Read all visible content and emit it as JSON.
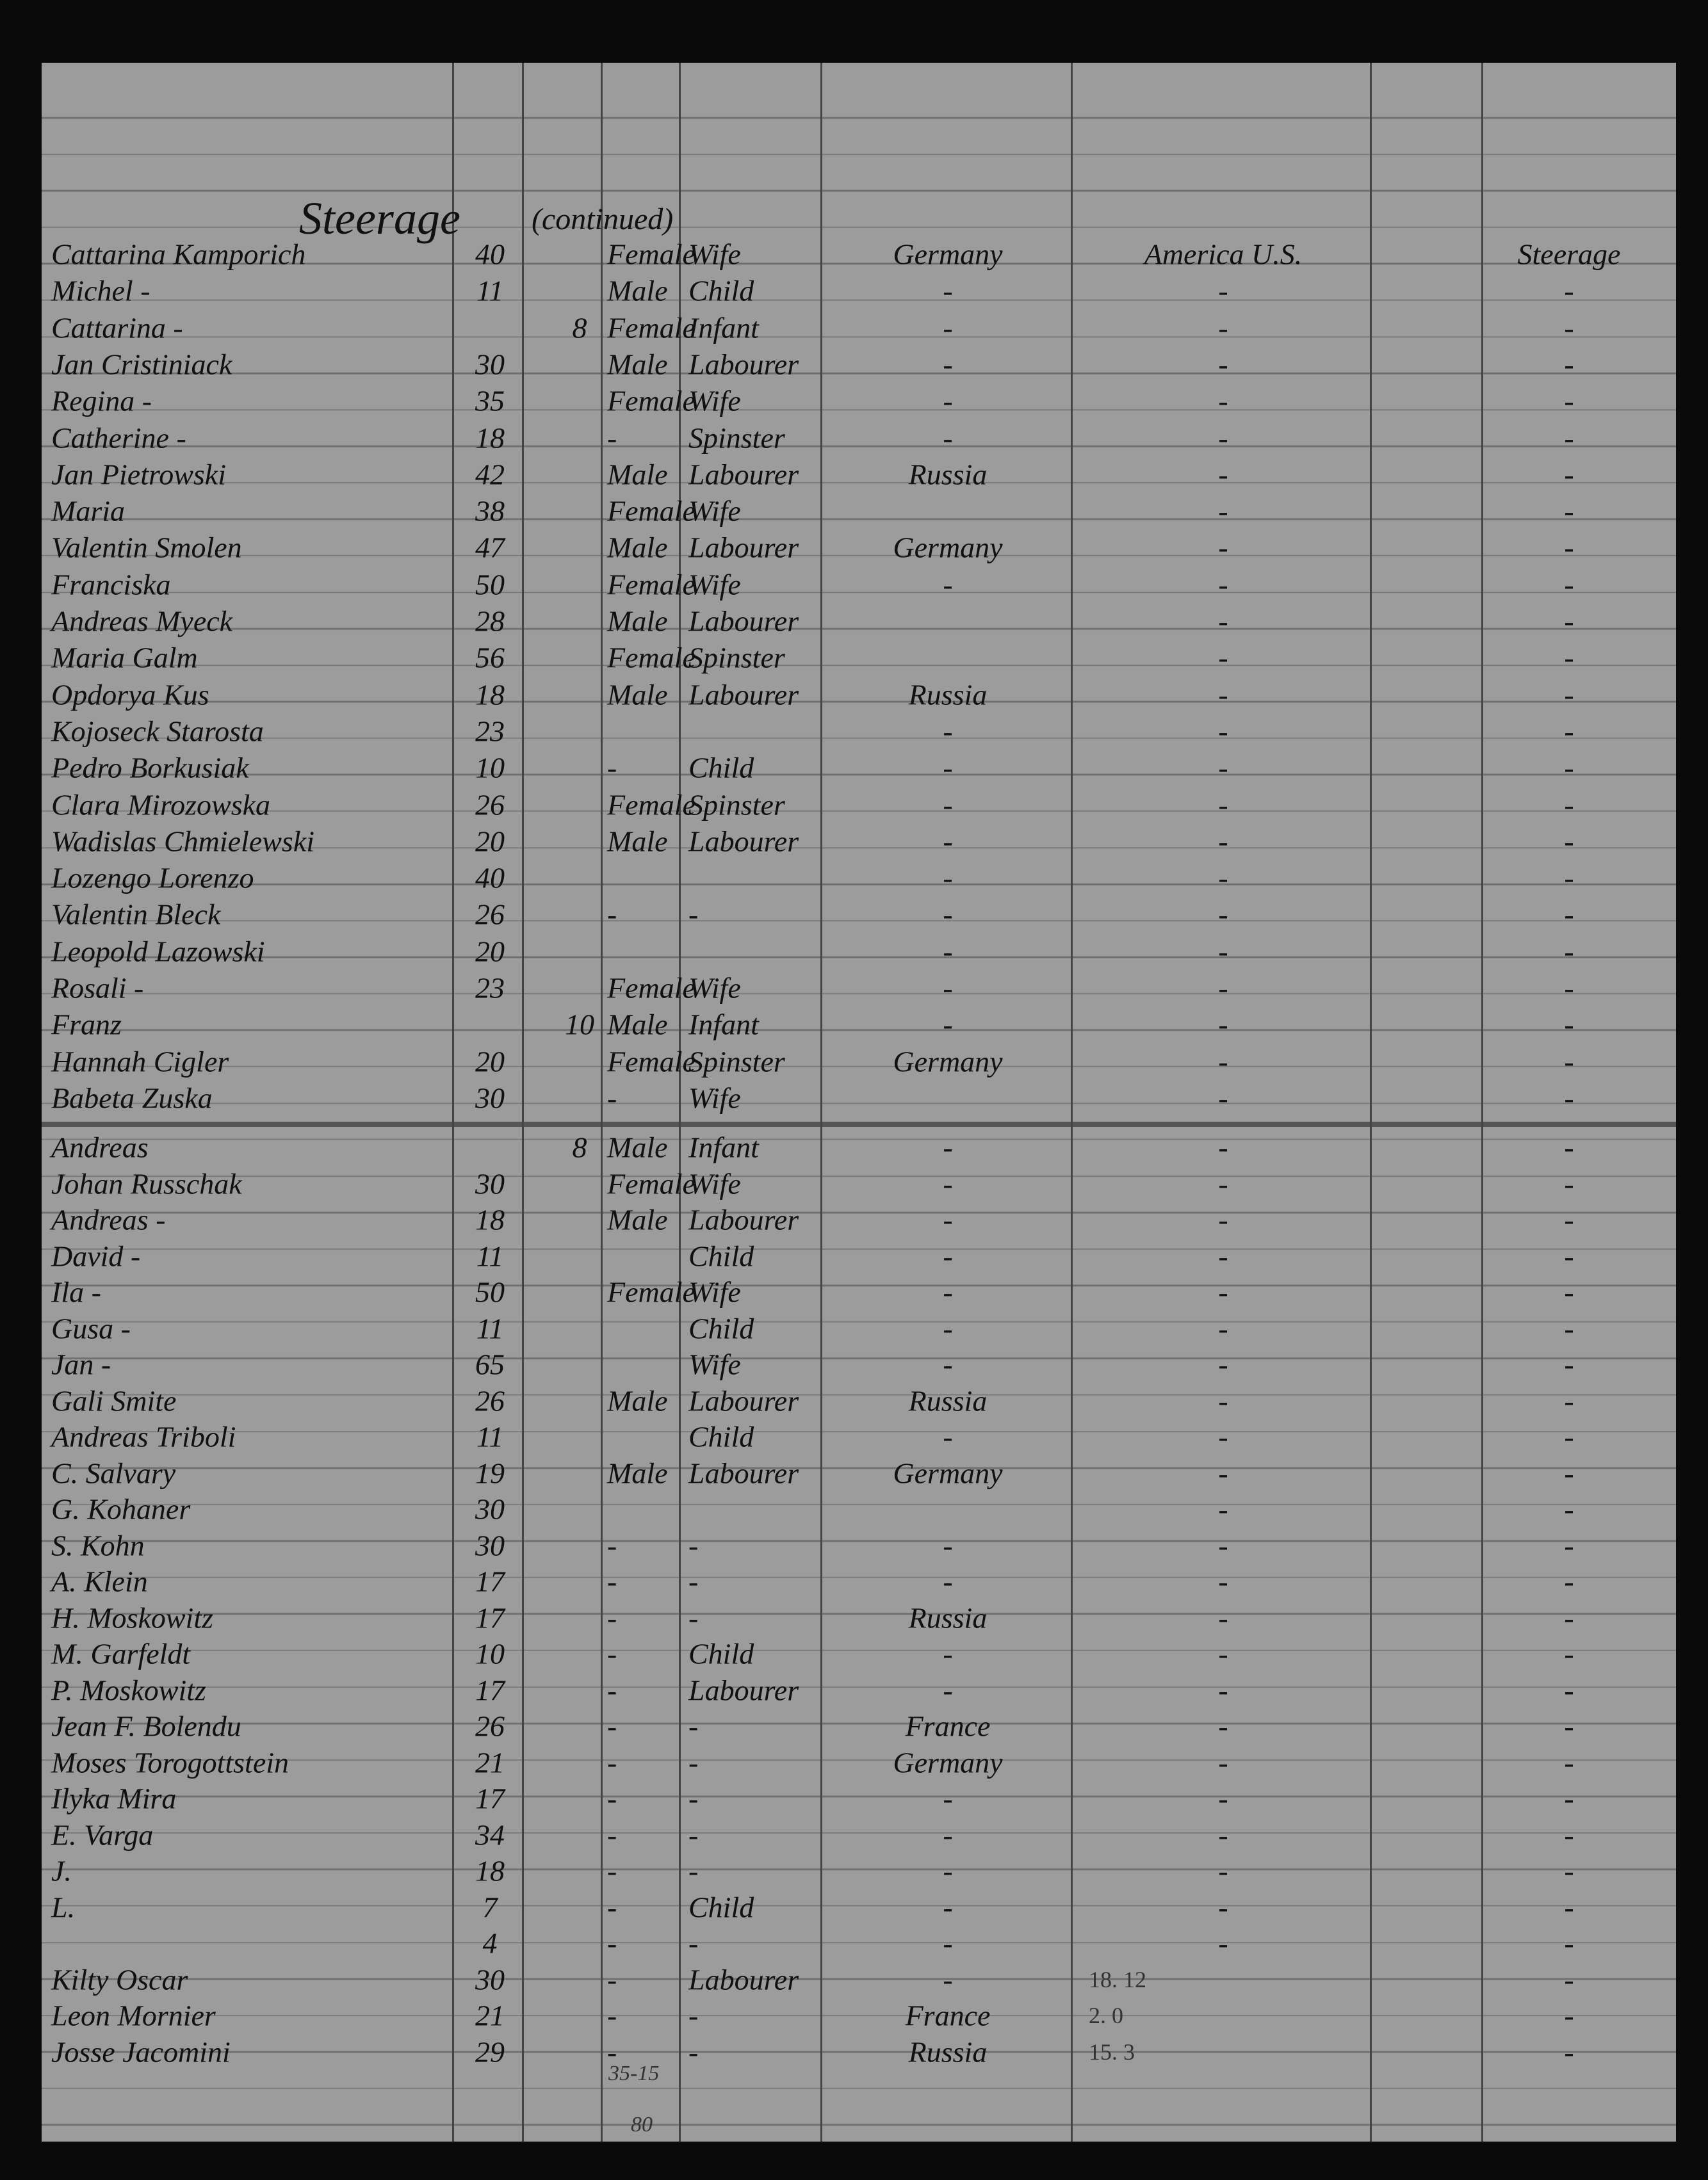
{
  "header": {
    "title": "Steerage",
    "subtitle": "(continued)"
  },
  "table": {
    "rows": [
      {
        "name": "Cattarina Kamporich",
        "age": "40",
        "sex": "Female",
        "occupation": "Wife",
        "country": "Germany",
        "destination": "America U.S.",
        "class": "Steerage"
      },
      {
        "name": "Michel  -",
        "age": "11",
        "sex": "Male",
        "occupation": "Child",
        "country": "-",
        "destination": "-",
        "class": "-"
      },
      {
        "name": "Cattarina  -",
        "infant": "8",
        "sex": "Female",
        "occupation": "Infant",
        "country": "-",
        "destination": "-",
        "class": "-"
      },
      {
        "name": "Jan Cristiniack",
        "age": "30",
        "sex": "Male",
        "occupation": "Labourer",
        "country": "-",
        "destination": "-",
        "class": "-"
      },
      {
        "name": "Regina  -",
        "age": "35",
        "sex": "Female",
        "occupation": "Wife",
        "country": "-",
        "destination": "-",
        "class": "-"
      },
      {
        "name": "Catherine  -",
        "age": "18",
        "sex": "-",
        "occupation": "Spinster",
        "country": "-",
        "destination": "-",
        "class": "-"
      },
      {
        "name": "Jan Pietrowski",
        "age": "42",
        "sex": "Male",
        "occupation": "Labourer",
        "country": "Russia",
        "destination": "-",
        "class": "-"
      },
      {
        "name": "Maria",
        "age": "38",
        "sex": "Female",
        "occupation": "Wife",
        "destination": "-",
        "class": "-"
      },
      {
        "name": "Valentin Smolen",
        "age": "47",
        "sex": "Male",
        "occupation": "Labourer",
        "country": "Germany",
        "destination": "-",
        "class": "-"
      },
      {
        "name": "Franciska",
        "age": "50",
        "sex": "Female",
        "occupation": "Wife",
        "country": "-",
        "destination": "-",
        "class": "-"
      },
      {
        "name": "Andreas Myeck",
        "age": "28",
        "sex": "Male",
        "occupation": "Labourer",
        "destination": "-",
        "class": "-"
      },
      {
        "name": "Maria Galm",
        "age": "56",
        "sex": "Female",
        "occupation": "Spinster",
        "destination": "-",
        "class": "-"
      },
      {
        "name": "Opdorya Kus",
        "age": "18",
        "sex": "Male",
        "occupation": "Labourer",
        "country": "Russia",
        "destination": "-",
        "class": "-"
      },
      {
        "name": "Kojoseck Starosta",
        "age": "23",
        "country": "-",
        "destination": "-",
        "class": "-"
      },
      {
        "name": "Pedro Borkusiak",
        "age": "10",
        "sex": "-",
        "occupation": "Child",
        "country": "-",
        "destination": "-",
        "class": "-"
      },
      {
        "name": "Clara Mirozowska",
        "age": "26",
        "sex": "Female",
        "occupation": "Spinster",
        "country": "-",
        "destination": "-",
        "class": "-"
      },
      {
        "name": "Wadislas Chmielewski",
        "age": "20",
        "sex": "Male",
        "occupation": "Labourer",
        "country": "-",
        "destination": "-",
        "class": "-"
      },
      {
        "name": "Lozengo Lorenzo",
        "age": "40",
        "country": "-",
        "destination": "-",
        "class": "-"
      },
      {
        "name": "Valentin Bleck",
        "age": "26",
        "sex": "-",
        "occupation": "-",
        "country": "-",
        "destination": "-",
        "class": "-"
      },
      {
        "name": "Leopold Lazowski",
        "age": "20",
        "country": "-",
        "destination": "-",
        "class": "-"
      },
      {
        "name": "Rosali  -",
        "age": "23",
        "sex": "Female",
        "occupation": "Wife",
        "country": "-",
        "destination": "-",
        "class": "-"
      },
      {
        "name": "Franz",
        "infant": "10",
        "sex": "Male",
        "occupation": "Infant",
        "country": "-",
        "destination": "-",
        "class": "-"
      },
      {
        "name": "Hannah Cigler",
        "age": "20",
        "sex": "Female",
        "occupation": "Spinster",
        "country": "Germany",
        "destination": "-",
        "class": "-"
      },
      {
        "name": "Babeta Zuska",
        "age": "30",
        "sex": "-",
        "occupation": "Wife",
        "destination": "-",
        "class": "-"
      },
      {
        "name": "Andreas",
        "infant": "8",
        "sex": "Male",
        "occupation": "Infant",
        "country": "-",
        "destination": "-",
        "class": "-"
      },
      {
        "name": "Johan Russchak",
        "age": "30",
        "sex": "Female",
        "occupation": "Wife",
        "country": "-",
        "destination": "-",
        "class": "-"
      },
      {
        "name": "Andreas  -",
        "age": "18",
        "sex": "Male",
        "occupation": "Labourer",
        "country": "-",
        "destination": "-",
        "class": "-"
      },
      {
        "name": "David  -",
        "age": "11",
        "occupation": "Child",
        "country": "-",
        "destination": "-",
        "class": "-"
      },
      {
        "name": "Ila  -",
        "age": "50",
        "sex": "Female",
        "occupation": "Wife",
        "country": "-",
        "destination": "-",
        "class": "-"
      },
      {
        "name": "Gusa  -",
        "age": "11",
        "occupation": "Child",
        "country": "-",
        "destination": "-",
        "class": "-"
      },
      {
        "name": "Jan  -",
        "age": "65",
        "occupation": "Wife",
        "country": "-",
        "destination": "-",
        "class": "-"
      },
      {
        "name": "Gali Smite",
        "age": "26",
        "sex": "Male",
        "occupation": "Labourer",
        "country": "Russia",
        "destination": "-",
        "class": "-"
      },
      {
        "name": "Andreas Triboli",
        "age": "11",
        "occupation": "Child",
        "country": "-",
        "destination": "-",
        "class": "-"
      },
      {
        "name": "C. Salvary",
        "age": "19",
        "sex": "Male",
        "occupation": "Labourer",
        "country": "Germany",
        "destination": "-",
        "class": "-"
      },
      {
        "name": "G. Kohaner",
        "age": "30",
        "destination": "-",
        "class": "-"
      },
      {
        "name": "S. Kohn",
        "age": "30",
        "sex": "-",
        "occupation": "-",
        "country": "-",
        "destination": "-",
        "class": "-"
      },
      {
        "name": "A. Klein",
        "age": "17",
        "sex": "-",
        "occupation": "-",
        "country": "-",
        "destination": "-",
        "class": "-"
      },
      {
        "name": "H. Moskowitz",
        "age": "17",
        "sex": "-",
        "occupation": "-",
        "country": "Russia",
        "destination": "-",
        "class": "-"
      },
      {
        "name": "M. Garfeldt",
        "age": "10",
        "sex": "-",
        "occupation": "Child",
        "country": "-",
        "destination": "-",
        "class": "-"
      },
      {
        "name": "P. Moskowitz",
        "age": "17",
        "sex": "-",
        "occupation": "Labourer",
        "country": "-",
        "destination": "-",
        "class": "-"
      },
      {
        "name": "Jean F. Bolendu",
        "age": "26",
        "sex": "-",
        "occupation": "-",
        "country": "France",
        "destination": "-",
        "class": "-"
      },
      {
        "name": "Moses Torogottstein",
        "age": "21",
        "sex": "-",
        "occupation": "-",
        "country": "Germany",
        "destination": "-",
        "class": "-"
      },
      {
        "name": "Ilyka Mira",
        "age": "17",
        "sex": "-",
        "occupation": "-",
        "country": "-",
        "destination": "-",
        "class": "-"
      },
      {
        "name": "E. Varga",
        "age": "34",
        "sex": "-",
        "occupation": "-",
        "country": "-",
        "destination": "-",
        "class": "-"
      },
      {
        "name": "J.",
        "age": "18",
        "sex": "-",
        "occupation": "-",
        "country": "-",
        "destination": "-",
        "class": "-"
      },
      {
        "name": "L.",
        "age": "7",
        "sex": "-",
        "occupation": "Child",
        "country": "-",
        "destination": "-",
        "class": "-"
      },
      {
        "age": "4",
        "sex": "-",
        "occupation": "-",
        "country": "-",
        "destination": "-",
        "class": "-"
      },
      {
        "name": "Kilty Oscar",
        "age": "30",
        "sex": "-",
        "occupation": "Labourer",
        "remarks": "18.  12",
        "country": "-",
        "class": "-"
      },
      {
        "name": "Leon Mornier",
        "age": "21",
        "sex": "-",
        "occupation": "-",
        "remarks": "2.  0",
        "country": "France",
        "class": "-"
      },
      {
        "name": "Josse Jacomini",
        "age": "29",
        "sex": "-",
        "occupation": "-",
        "remarks": "15.  3",
        "country": "Russia",
        "class": "-"
      }
    ]
  },
  "footer": {
    "notes": [
      "35-15",
      "80"
    ]
  }
}
